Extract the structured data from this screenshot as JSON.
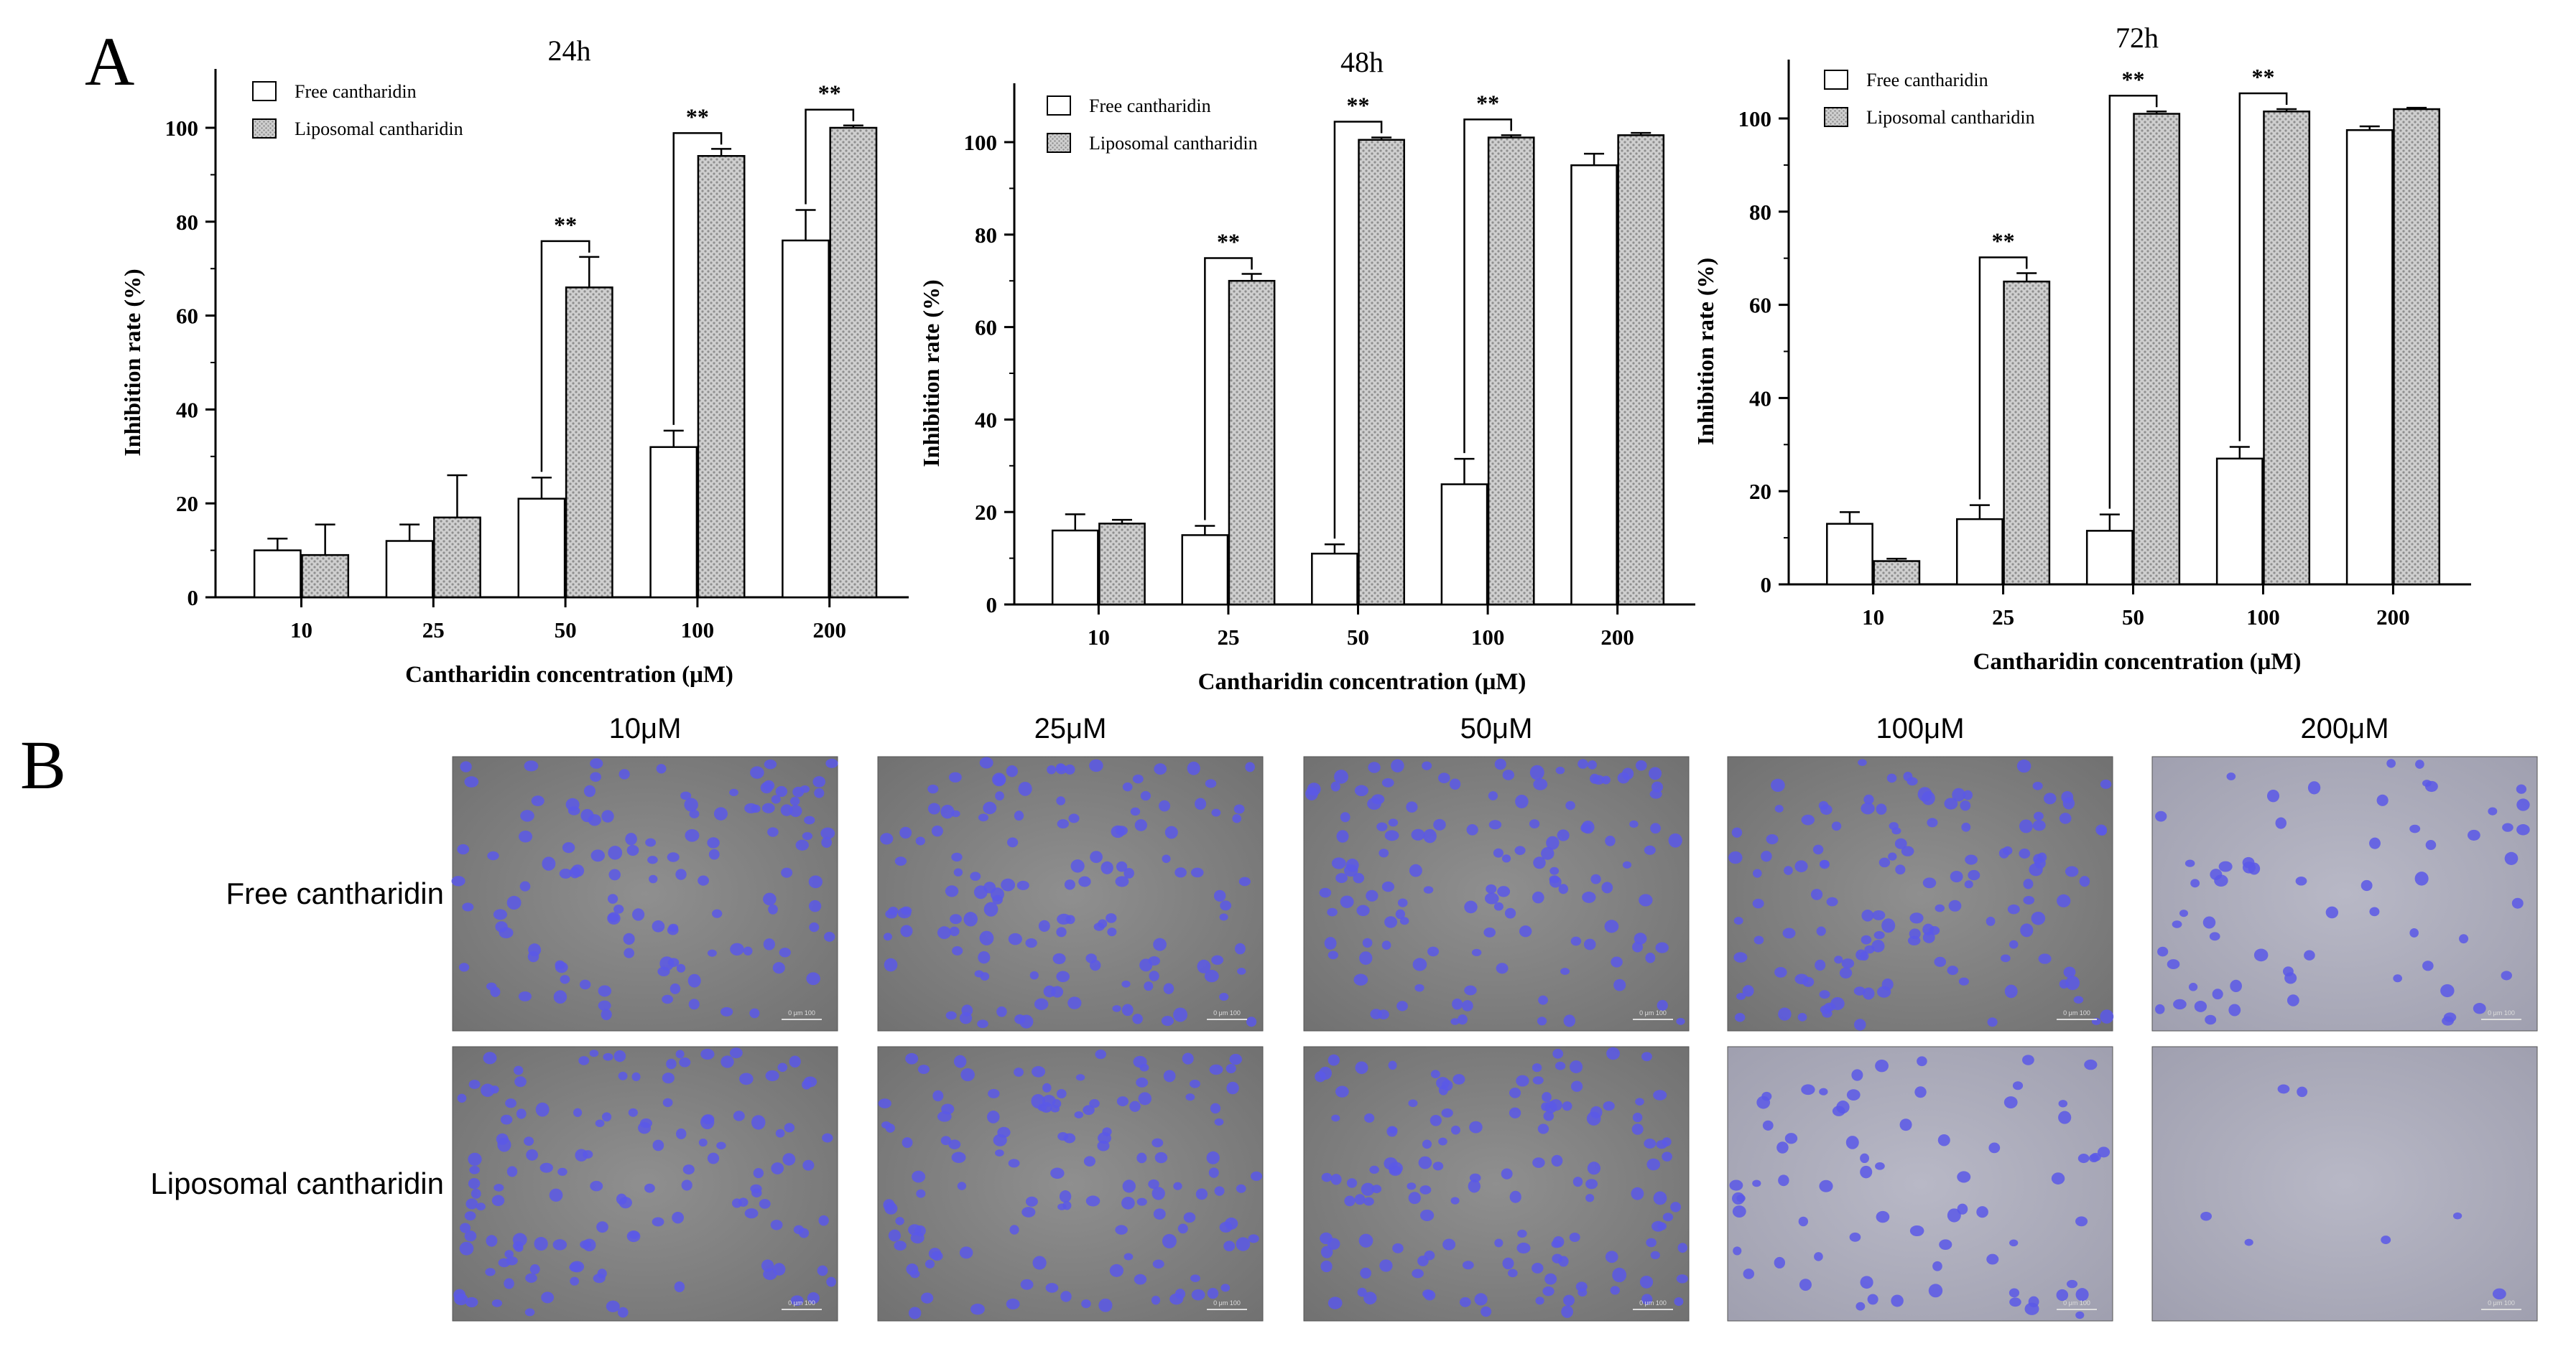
{
  "panel_a": {
    "letter": "A"
  },
  "panel_b": {
    "letter": "B",
    "columns": [
      "10μM",
      "25μM",
      "50μM",
      "100μM",
      "200μM"
    ],
    "rows": [
      "Free cantharidin",
      "Liposomal cantharidin"
    ],
    "cell_density": [
      [
        0.55,
        0.6,
        0.58,
        0.6,
        0.28
      ],
      [
        0.6,
        0.58,
        0.62,
        0.32,
        0.03
      ]
    ],
    "cell_color": "#5b58e8",
    "scale_bar_label": "0 μm 100"
  },
  "chart_data": [
    {
      "type": "bar",
      "title": "24h",
      "xlabel": "Cantharidin concentration (μM)",
      "ylabel": "Inhibition rate (%)",
      "ylim": [
        0,
        100
      ],
      "yticks": [
        0,
        20,
        40,
        60,
        80,
        100
      ],
      "categories": [
        "10",
        "25",
        "50",
        "100",
        "200"
      ],
      "series": [
        {
          "name": "Free cantharidin",
          "values": [
            10,
            12,
            21,
            32,
            76
          ],
          "errors": [
            2.5,
            3.5,
            4.5,
            3.5,
            6.5
          ],
          "fill": "#ffffff"
        },
        {
          "name": "Liposomal cantharidin",
          "values": [
            9,
            17,
            66,
            94,
            100
          ],
          "errors": [
            6.5,
            9,
            6.5,
            1.5,
            0.5
          ],
          "fill": "#c9c9c9"
        }
      ],
      "significance": [
        {
          "category": "50",
          "label": "**"
        },
        {
          "category": "100",
          "label": "**"
        },
        {
          "category": "200",
          "label": "**"
        }
      ],
      "legend_position": "top-left"
    },
    {
      "type": "bar",
      "title": "48h",
      "xlabel": "Cantharidin concentration (μM)",
      "ylabel": "Inhibition rate (%)",
      "ylim": [
        0,
        100
      ],
      "yticks": [
        0,
        20,
        40,
        60,
        80,
        100
      ],
      "categories": [
        "10",
        "25",
        "50",
        "100",
        "200"
      ],
      "series": [
        {
          "name": "Free cantharidin",
          "values": [
            16,
            15,
            11,
            26,
            95
          ],
          "errors": [
            3.5,
            2,
            2,
            5.5,
            2.5
          ],
          "fill": "#ffffff"
        },
        {
          "name": "Liposomal cantharidin",
          "values": [
            17.5,
            70,
            100.5,
            101,
            101.5
          ],
          "errors": [
            0.8,
            1.5,
            0.5,
            0.5,
            0.5
          ],
          "fill": "#c9c9c9"
        }
      ],
      "significance": [
        {
          "category": "25",
          "label": "**"
        },
        {
          "category": "50",
          "label": "**"
        },
        {
          "category": "100",
          "label": "**"
        }
      ],
      "legend_position": "top-left"
    },
    {
      "type": "bar",
      "title": "72h",
      "xlabel": "Cantharidin concentration (μM)",
      "ylabel": "Inhibition rate (%)",
      "ylim": [
        0,
        100
      ],
      "yticks": [
        0,
        20,
        40,
        60,
        80,
        100
      ],
      "categories": [
        "10",
        "25",
        "50",
        "100",
        "200"
      ],
      "series": [
        {
          "name": "Free cantharidin",
          "values": [
            13,
            14,
            11.5,
            27,
            97.5
          ],
          "errors": [
            2.5,
            3,
            3.5,
            2.5,
            0.8
          ],
          "fill": "#ffffff"
        },
        {
          "name": "Liposomal cantharidin",
          "values": [
            5,
            65,
            101,
            101.5,
            102
          ],
          "errors": [
            0.5,
            1.8,
            0.5,
            0.5,
            0.3
          ],
          "fill": "#c9c9c9"
        }
      ],
      "significance": [
        {
          "category": "25",
          "label": "**"
        },
        {
          "category": "50",
          "label": "**"
        },
        {
          "category": "100",
          "label": "**"
        }
      ],
      "legend_position": "top-left"
    }
  ]
}
